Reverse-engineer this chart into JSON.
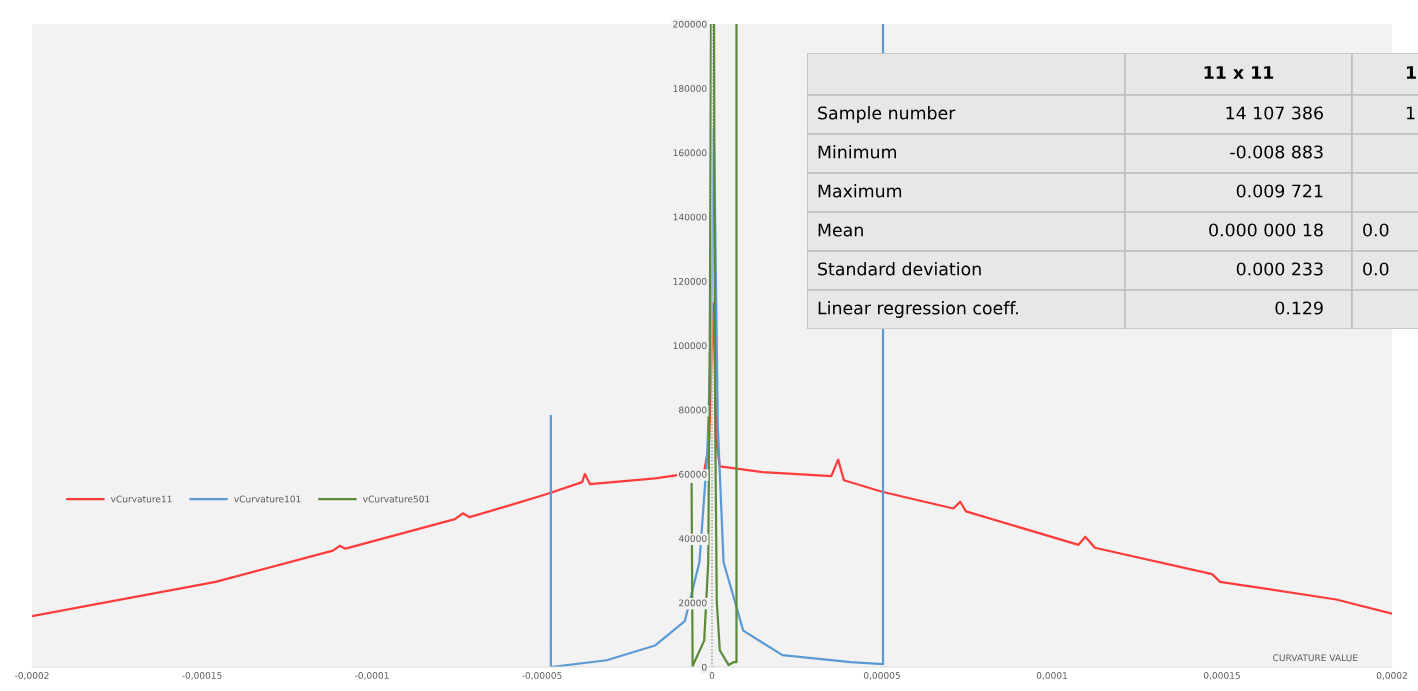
{
  "chart_data": [
    {
      "type": "line",
      "xlabel": "CURVATURE VALUE",
      "legend": "left",
      "grid": false,
      "marker": "none",
      "line_style": "solid",
      "xlim": [
        -0.0002,
        0.0002
      ],
      "xticks": [
        {
          "value": -0.0002,
          "label": "-0,0002"
        },
        {
          "value": -0.00015,
          "label": "-0,00015"
        },
        {
          "value": -0.0001,
          "label": "-0,0001"
        },
        {
          "value": -5e-05,
          "label": "-0,00005"
        },
        0,
        {
          "value": 5e-05,
          "label": "0,00005"
        },
        {
          "value": 0.0001,
          "label": "0,0001"
        },
        {
          "value": 0.00015,
          "label": "0,00015"
        },
        {
          "value": 0.0002,
          "label": "0,0002"
        }
      ],
      "ref_lines": [
        {
          "axis": "x",
          "value": 0,
          "color": "#404040",
          "line_style": "dotted"
        }
      ],
      "ylim": [
        0,
        200000
      ],
      "yticks": [
        0,
        20000,
        40000,
        60000,
        80000,
        100000,
        120000,
        140000,
        160000,
        180000,
        200000
      ],
      "series": [
        {
          "name": "vCurvature11",
          "color": "#ff3b3b",
          "x": [
            -0.0002,
            -0.000146,
            -0.0001115,
            -0.0001095,
            -0.0001078,
            -7.56e-05,
            -7.33e-05,
            -7.13e-05,
            -5.98e-05,
            -4.83e-05,
            -3.82e-05,
            -3.74e-05,
            -3.59e-05,
            -1.67e-05,
            -2.3e-06,
            -9e-07,
            4e-07,
            1.4e-06,
            2.3e-06,
            1.49e-05,
            3.51e-05,
            3.71e-05,
            3.88e-05,
            5e-05,
            7.1e-05,
            7.3e-05,
            7.47e-05,
            0.0001078,
            0.0001098,
            0.0001126,
            0.0001471,
            0.0001494,
            0.0001836,
            0.0001997
          ],
          "values": [
            15800,
            26500,
            36200,
            37700,
            36800,
            46000,
            47800,
            46600,
            50200,
            53900,
            57500,
            60000,
            56900,
            58700,
            60900,
            69100,
            113000,
            69100,
            62400,
            60600,
            59400,
            64500,
            58100,
            54500,
            49300,
            51400,
            48400,
            38000,
            40500,
            37100,
            28900,
            26500,
            21000,
            16700
          ]
        },
        {
          "name": "vCurvature101",
          "color": "#5b9bd5",
          "x": [
            -4.74e-05,
            -4.74e-05,
            -3.1e-05,
            -1.67e-05,
            -8e-06,
            -3.7e-06,
            -1.4e-06,
            -3e-07,
            3e-07,
            5e-07,
            9e-07,
            1.7e-06,
            3.4e-06,
            9.2e-06,
            2.07e-05,
            4.08e-05,
            5.03e-05,
            5.03e-05
          ],
          "values": [
            78000,
            0,
            2100,
            6700,
            14300,
            32600,
            66000,
            102600,
            142000,
            167400,
            142000,
            75200,
            32600,
            11300,
            3700,
            1500,
            900,
            200000
          ]
        },
        {
          "name": "vCurvature501",
          "color": "#5a8a3a",
          "x": [
            -6e-06,
            -5.7e-06,
            -2.3e-06,
            -1.1e-06,
            -6e-07,
            -3e-07,
            6e-07,
            9e-07,
            1.4e-06,
            2.3e-06,
            4.9e-06,
            6.3e-06,
            7.2e-06,
            7.2e-06
          ],
          "values": [
            56900,
            300,
            8200,
            32600,
            111700,
            200000,
            200000,
            81000,
            20400,
            5200,
            600,
            1500,
            1500,
            200000
          ]
        }
      ]
    },
    {
      "type": "other",
      "categories": [
        null,
        "11 x 11",
        "1"
      ],
      "y_categories": [
        "Sample number",
        "Minimum",
        "Maximum",
        "Mean",
        "Standard deviation",
        "Linear regression coeff."
      ],
      "cell_labels": [
        [
          "14 107 386",
          "1"
        ],
        [
          "-0.008 883",
          null
        ],
        [
          "0.009 721",
          null
        ],
        [
          "0.000 000 18",
          "0.0"
        ],
        [
          "0.000 233",
          "0.0"
        ],
        [
          "0.129",
          null
        ]
      ]
    }
  ]
}
